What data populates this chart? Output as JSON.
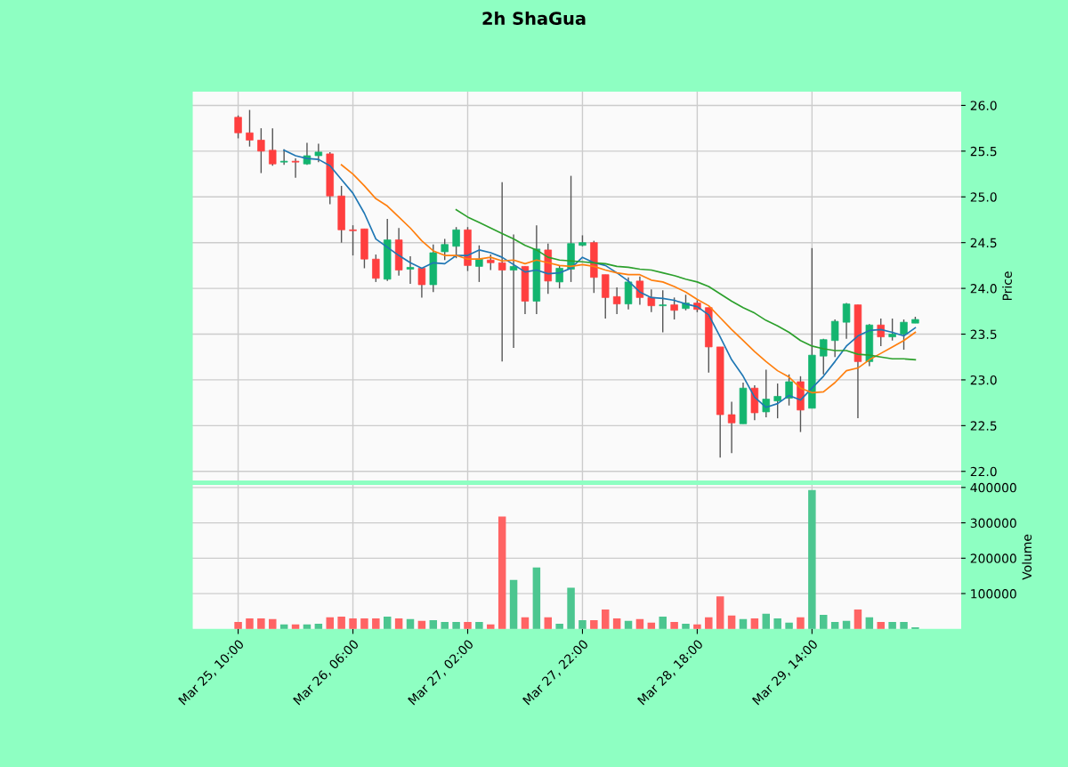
{
  "chart_data": [
    {
      "type": "candlestick",
      "title": "2h ShaGua",
      "ylabel": "Price",
      "categories": [
        null,
        null,
        null,
        null,
        null,
        null,
        null,
        null,
        null,
        null,
        null,
        null,
        null,
        null,
        null,
        null,
        null,
        null,
        null,
        null,
        null,
        null,
        null,
        null,
        null,
        null,
        null,
        null,
        null,
        null,
        null,
        null,
        null,
        null,
        null,
        null,
        null,
        null,
        null,
        null,
        null,
        null,
        null,
        null,
        null,
        null,
        null,
        null,
        null,
        null,
        null,
        null,
        null,
        null,
        null,
        null,
        null,
        null,
        null,
        null
      ],
      "ohlc": [
        [
          25.87,
          25.89,
          25.64,
          25.7
        ],
        [
          25.7,
          25.95,
          25.55,
          25.62
        ],
        [
          25.62,
          25.75,
          25.26,
          25.5
        ],
        [
          25.51,
          25.75,
          25.34,
          25.36
        ],
        [
          25.38,
          25.52,
          25.35,
          25.39
        ],
        [
          25.39,
          25.42,
          25.21,
          25.38
        ],
        [
          25.36,
          25.59,
          25.35,
          25.45
        ],
        [
          25.45,
          25.58,
          25.38,
          25.49
        ],
        [
          25.47,
          25.49,
          24.92,
          25.01
        ],
        [
          25.01,
          25.12,
          24.5,
          24.64
        ],
        [
          24.64,
          24.69,
          24.36,
          24.63
        ],
        [
          24.65,
          24.65,
          24.22,
          24.32
        ],
        [
          24.32,
          24.37,
          24.07,
          24.11
        ],
        [
          24.1,
          24.76,
          24.08,
          24.53
        ],
        [
          24.53,
          24.66,
          24.14,
          24.2
        ],
        [
          24.21,
          24.35,
          24.05,
          24.23
        ],
        [
          24.22,
          24.22,
          23.9,
          24.04
        ],
        [
          24.04,
          24.48,
          23.96,
          24.39
        ],
        [
          24.4,
          24.54,
          24.31,
          24.48
        ],
        [
          24.46,
          24.67,
          24.33,
          24.64
        ],
        [
          24.64,
          24.67,
          24.19,
          24.25
        ],
        [
          24.24,
          24.47,
          24.07,
          24.32
        ],
        [
          24.31,
          24.37,
          24.2,
          24.28
        ],
        [
          24.28,
          25.16,
          23.2,
          24.2
        ],
        [
          24.2,
          24.59,
          23.35,
          24.24
        ],
        [
          24.24,
          24.24,
          23.72,
          23.86
        ],
        [
          23.86,
          24.69,
          23.72,
          24.43
        ],
        [
          24.42,
          24.49,
          23.94,
          24.08
        ],
        [
          24.07,
          24.25,
          24.0,
          24.22
        ],
        [
          24.21,
          25.23,
          24.07,
          24.49
        ],
        [
          24.47,
          24.58,
          24.46,
          24.5
        ],
        [
          24.5,
          24.52,
          23.95,
          24.12
        ],
        [
          24.15,
          24.15,
          23.67,
          23.9
        ],
        [
          23.91,
          24.01,
          23.72,
          23.83
        ],
        [
          23.83,
          24.12,
          23.77,
          24.07
        ],
        [
          24.08,
          24.13,
          23.82,
          23.9
        ],
        [
          23.9,
          23.99,
          23.74,
          23.81
        ],
        [
          23.81,
          23.98,
          23.52,
          23.82
        ],
        [
          23.82,
          23.9,
          23.66,
          23.76
        ],
        [
          23.78,
          23.93,
          23.76,
          23.84
        ],
        [
          23.84,
          23.87,
          23.74,
          23.77
        ],
        [
          23.79,
          23.79,
          23.08,
          23.36
        ],
        [
          23.36,
          23.36,
          22.15,
          22.62
        ],
        [
          22.62,
          22.76,
          22.2,
          22.53
        ],
        [
          22.52,
          22.97,
          22.52,
          22.91
        ],
        [
          22.91,
          22.94,
          22.56,
          22.64
        ],
        [
          22.65,
          23.11,
          22.59,
          22.79
        ],
        [
          22.77,
          22.96,
          22.58,
          22.82
        ],
        [
          22.8,
          23.06,
          22.72,
          22.98
        ],
        [
          22.98,
          23.04,
          22.43,
          22.67
        ],
        [
          22.69,
          24.44,
          22.69,
          23.27
        ],
        [
          23.26,
          23.45,
          23.06,
          23.44
        ],
        [
          23.43,
          23.66,
          23.25,
          23.64
        ],
        [
          23.63,
          23.84,
          23.45,
          23.83
        ],
        [
          23.82,
          23.82,
          22.58,
          23.2
        ],
        [
          23.2,
          23.61,
          23.15,
          23.6
        ],
        [
          23.6,
          23.67,
          23.37,
          23.47
        ],
        [
          23.47,
          23.67,
          23.43,
          23.5
        ],
        [
          23.5,
          23.66,
          23.33,
          23.63
        ],
        [
          23.62,
          23.69,
          23.62,
          23.66
        ]
      ],
      "colors": [
        "#ff3f3f",
        "#ff3f3f",
        "#ff3f3f",
        "#ff3f3f",
        "#13b56f",
        "#ff3f3f",
        "#13b56f",
        "#13b56f",
        "#ff3f3f",
        "#ff3f3f",
        "#ff3f3f",
        "#ff3f3f",
        "#ff3f3f",
        "#13b56f",
        "#ff3f3f",
        "#13b56f",
        "#ff3f3f",
        "#13b56f",
        "#13b56f",
        "#13b56f",
        "#ff3f3f",
        "#13b56f",
        "#ff3f3f",
        "#ff3f3f",
        "#13b56f",
        "#ff3f3f",
        "#13b56f",
        "#ff3f3f",
        "#13b56f",
        "#13b56f",
        "#13b56f",
        "#ff3f3f",
        "#ff3f3f",
        "#ff3f3f",
        "#13b56f",
        "#ff3f3f",
        "#ff3f3f",
        "#13b56f",
        "#ff3f3f",
        "#13b56f",
        "#ff3f3f",
        "#ff3f3f",
        "#ff3f3f",
        "#ff3f3f",
        "#13b56f",
        "#ff3f3f",
        "#13b56f",
        "#13b56f",
        "#13b56f",
        "#ff3f3f",
        "#13b56f",
        "#13b56f",
        "#13b56f",
        "#13b56f",
        "#ff3f3f",
        "#13b56f",
        "#ff3f3f",
        "#13b56f",
        "#13b56f",
        "#13b56f"
      ],
      "series": [
        {
          "type": "line",
          "color": "#1f77b4",
          "values": [
            null,
            null,
            null,
            null,
            25.51,
            25.45,
            25.42,
            25.41,
            25.34,
            25.19,
            25.04,
            24.82,
            24.54,
            24.45,
            24.36,
            24.28,
            24.22,
            24.28,
            24.27,
            24.36,
            24.36,
            24.42,
            24.39,
            24.34,
            24.26,
            24.18,
            24.2,
            24.16,
            24.17,
            24.22,
            24.34,
            24.28,
            24.25,
            24.17,
            24.08,
            23.96,
            23.9,
            23.89,
            23.87,
            23.83,
            23.8,
            23.71,
            23.47,
            23.22,
            23.04,
            22.81,
            22.7,
            22.74,
            22.83,
            22.78,
            22.91,
            23.04,
            23.2,
            23.37,
            23.48,
            23.54,
            23.55,
            23.52,
            23.48,
            23.57
          ]
        },
        {
          "type": "line",
          "color": "#ff7f0e",
          "values": [
            null,
            null,
            null,
            null,
            null,
            null,
            null,
            null,
            null,
            25.35,
            25.25,
            25.12,
            24.98,
            24.9,
            24.78,
            24.66,
            24.52,
            24.41,
            24.36,
            24.36,
            24.32,
            24.32,
            24.34,
            24.3,
            24.31,
            24.27,
            24.31,
            24.28,
            24.25,
            24.24,
            24.26,
            24.24,
            24.2,
            24.17,
            24.15,
            24.15,
            24.09,
            24.07,
            24.02,
            23.96,
            23.88,
            23.81,
            23.68,
            23.55,
            23.43,
            23.31,
            23.2,
            23.1,
            23.03,
            22.91,
            22.86,
            22.87,
            22.97,
            23.1,
            23.13,
            23.22,
            23.29,
            23.36,
            23.43,
            23.52
          ]
        },
        {
          "type": "line",
          "color": "#2ca02c",
          "values": [
            null,
            null,
            null,
            null,
            null,
            null,
            null,
            null,
            null,
            null,
            null,
            null,
            null,
            null,
            null,
            null,
            null,
            null,
            null,
            24.86,
            24.78,
            24.72,
            24.66,
            24.6,
            24.54,
            24.47,
            24.42,
            24.34,
            24.31,
            24.3,
            24.29,
            24.28,
            24.27,
            24.24,
            24.23,
            24.21,
            24.2,
            24.17,
            24.14,
            24.1,
            24.07,
            24.02,
            23.94,
            23.86,
            23.79,
            23.73,
            23.65,
            23.59,
            23.52,
            23.43,
            23.37,
            23.34,
            23.32,
            23.32,
            23.28,
            23.27,
            23.25,
            23.23,
            23.23,
            23.22
          ]
        }
      ],
      "ylim": [
        21.9,
        26.15
      ],
      "yticks": [
        {
          "value": 22,
          "label": "22.0"
        },
        {
          "value": 22.5,
          "label": "22.5"
        },
        {
          "value": 23,
          "label": "23.0"
        },
        {
          "value": 23.5,
          "label": "23.5"
        },
        {
          "value": 24,
          "label": "24.0"
        },
        {
          "value": 24.5,
          "label": "24.5"
        },
        {
          "value": 25,
          "label": "25.0"
        },
        {
          "value": 25.5,
          "label": "25.5"
        },
        {
          "value": 26,
          "label": "26.0"
        }
      ],
      "grid": true,
      "tick_labels": "y"
    },
    {
      "type": "bar",
      "ylabel": "Volume",
      "categories": [
        "Mar 25, 10:00",
        null,
        null,
        null,
        null,
        null,
        null,
        null,
        null,
        null,
        "Mar 26, 06:00",
        null,
        null,
        null,
        null,
        null,
        null,
        null,
        null,
        null,
        "Mar 27, 02:00",
        null,
        null,
        null,
        null,
        null,
        null,
        null,
        null,
        null,
        "Mar 27, 22:00",
        null,
        null,
        null,
        null,
        null,
        null,
        null,
        null,
        null,
        "Mar 28, 18:00",
        null,
        null,
        null,
        null,
        null,
        null,
        null,
        null,
        null,
        "Mar 29, 14:00",
        null,
        null,
        null,
        null,
        null,
        null,
        null,
        null,
        null
      ],
      "values": [
        18000,
        28000,
        28000,
        26000,
        11000,
        11000,
        11000,
        13000,
        31000,
        33000,
        28000,
        28000,
        28000,
        33000,
        28000,
        26000,
        21000,
        23000,
        18000,
        18000,
        18000,
        18000,
        11000,
        316000,
        137000,
        31000,
        172000,
        31000,
        13000,
        115000,
        23000,
        23000,
        53000,
        28000,
        21000,
        26000,
        16000,
        33000,
        18000,
        13000,
        11000,
        31000,
        90000,
        36000,
        26000,
        28000,
        41000,
        28000,
        16000,
        31000,
        391000,
        38000,
        18000,
        21000,
        53000,
        31000,
        18000,
        18000,
        18000,
        3000
      ],
      "colors": [
        "#ff6464",
        "#ff6464",
        "#ff6464",
        "#ff6464",
        "#4cc690",
        "#ff6464",
        "#4cc690",
        "#4cc690",
        "#ff6464",
        "#ff6464",
        "#ff6464",
        "#ff6464",
        "#ff6464",
        "#4cc690",
        "#ff6464",
        "#4cc690",
        "#ff6464",
        "#4cc690",
        "#4cc690",
        "#4cc690",
        "#ff6464",
        "#4cc690",
        "#ff6464",
        "#ff6464",
        "#4cc690",
        "#ff6464",
        "#4cc690",
        "#ff6464",
        "#4cc690",
        "#4cc690",
        "#4cc690",
        "#ff6464",
        "#ff6464",
        "#ff6464",
        "#4cc690",
        "#ff6464",
        "#ff6464",
        "#4cc690",
        "#ff6464",
        "#4cc690",
        "#ff6464",
        "#ff6464",
        "#ff6464",
        "#ff6464",
        "#4cc690",
        "#ff6464",
        "#4cc690",
        "#4cc690",
        "#4cc690",
        "#ff6464",
        "#4cc690",
        "#4cc690",
        "#4cc690",
        "#4cc690",
        "#ff6464",
        "#4cc690",
        "#ff6464",
        "#4cc690",
        "#4cc690",
        "#4cc690"
      ],
      "ylim": [
        0,
        407000
      ],
      "yticks": [
        100000,
        200000,
        300000,
        400000
      ],
      "grid": true
    }
  ]
}
